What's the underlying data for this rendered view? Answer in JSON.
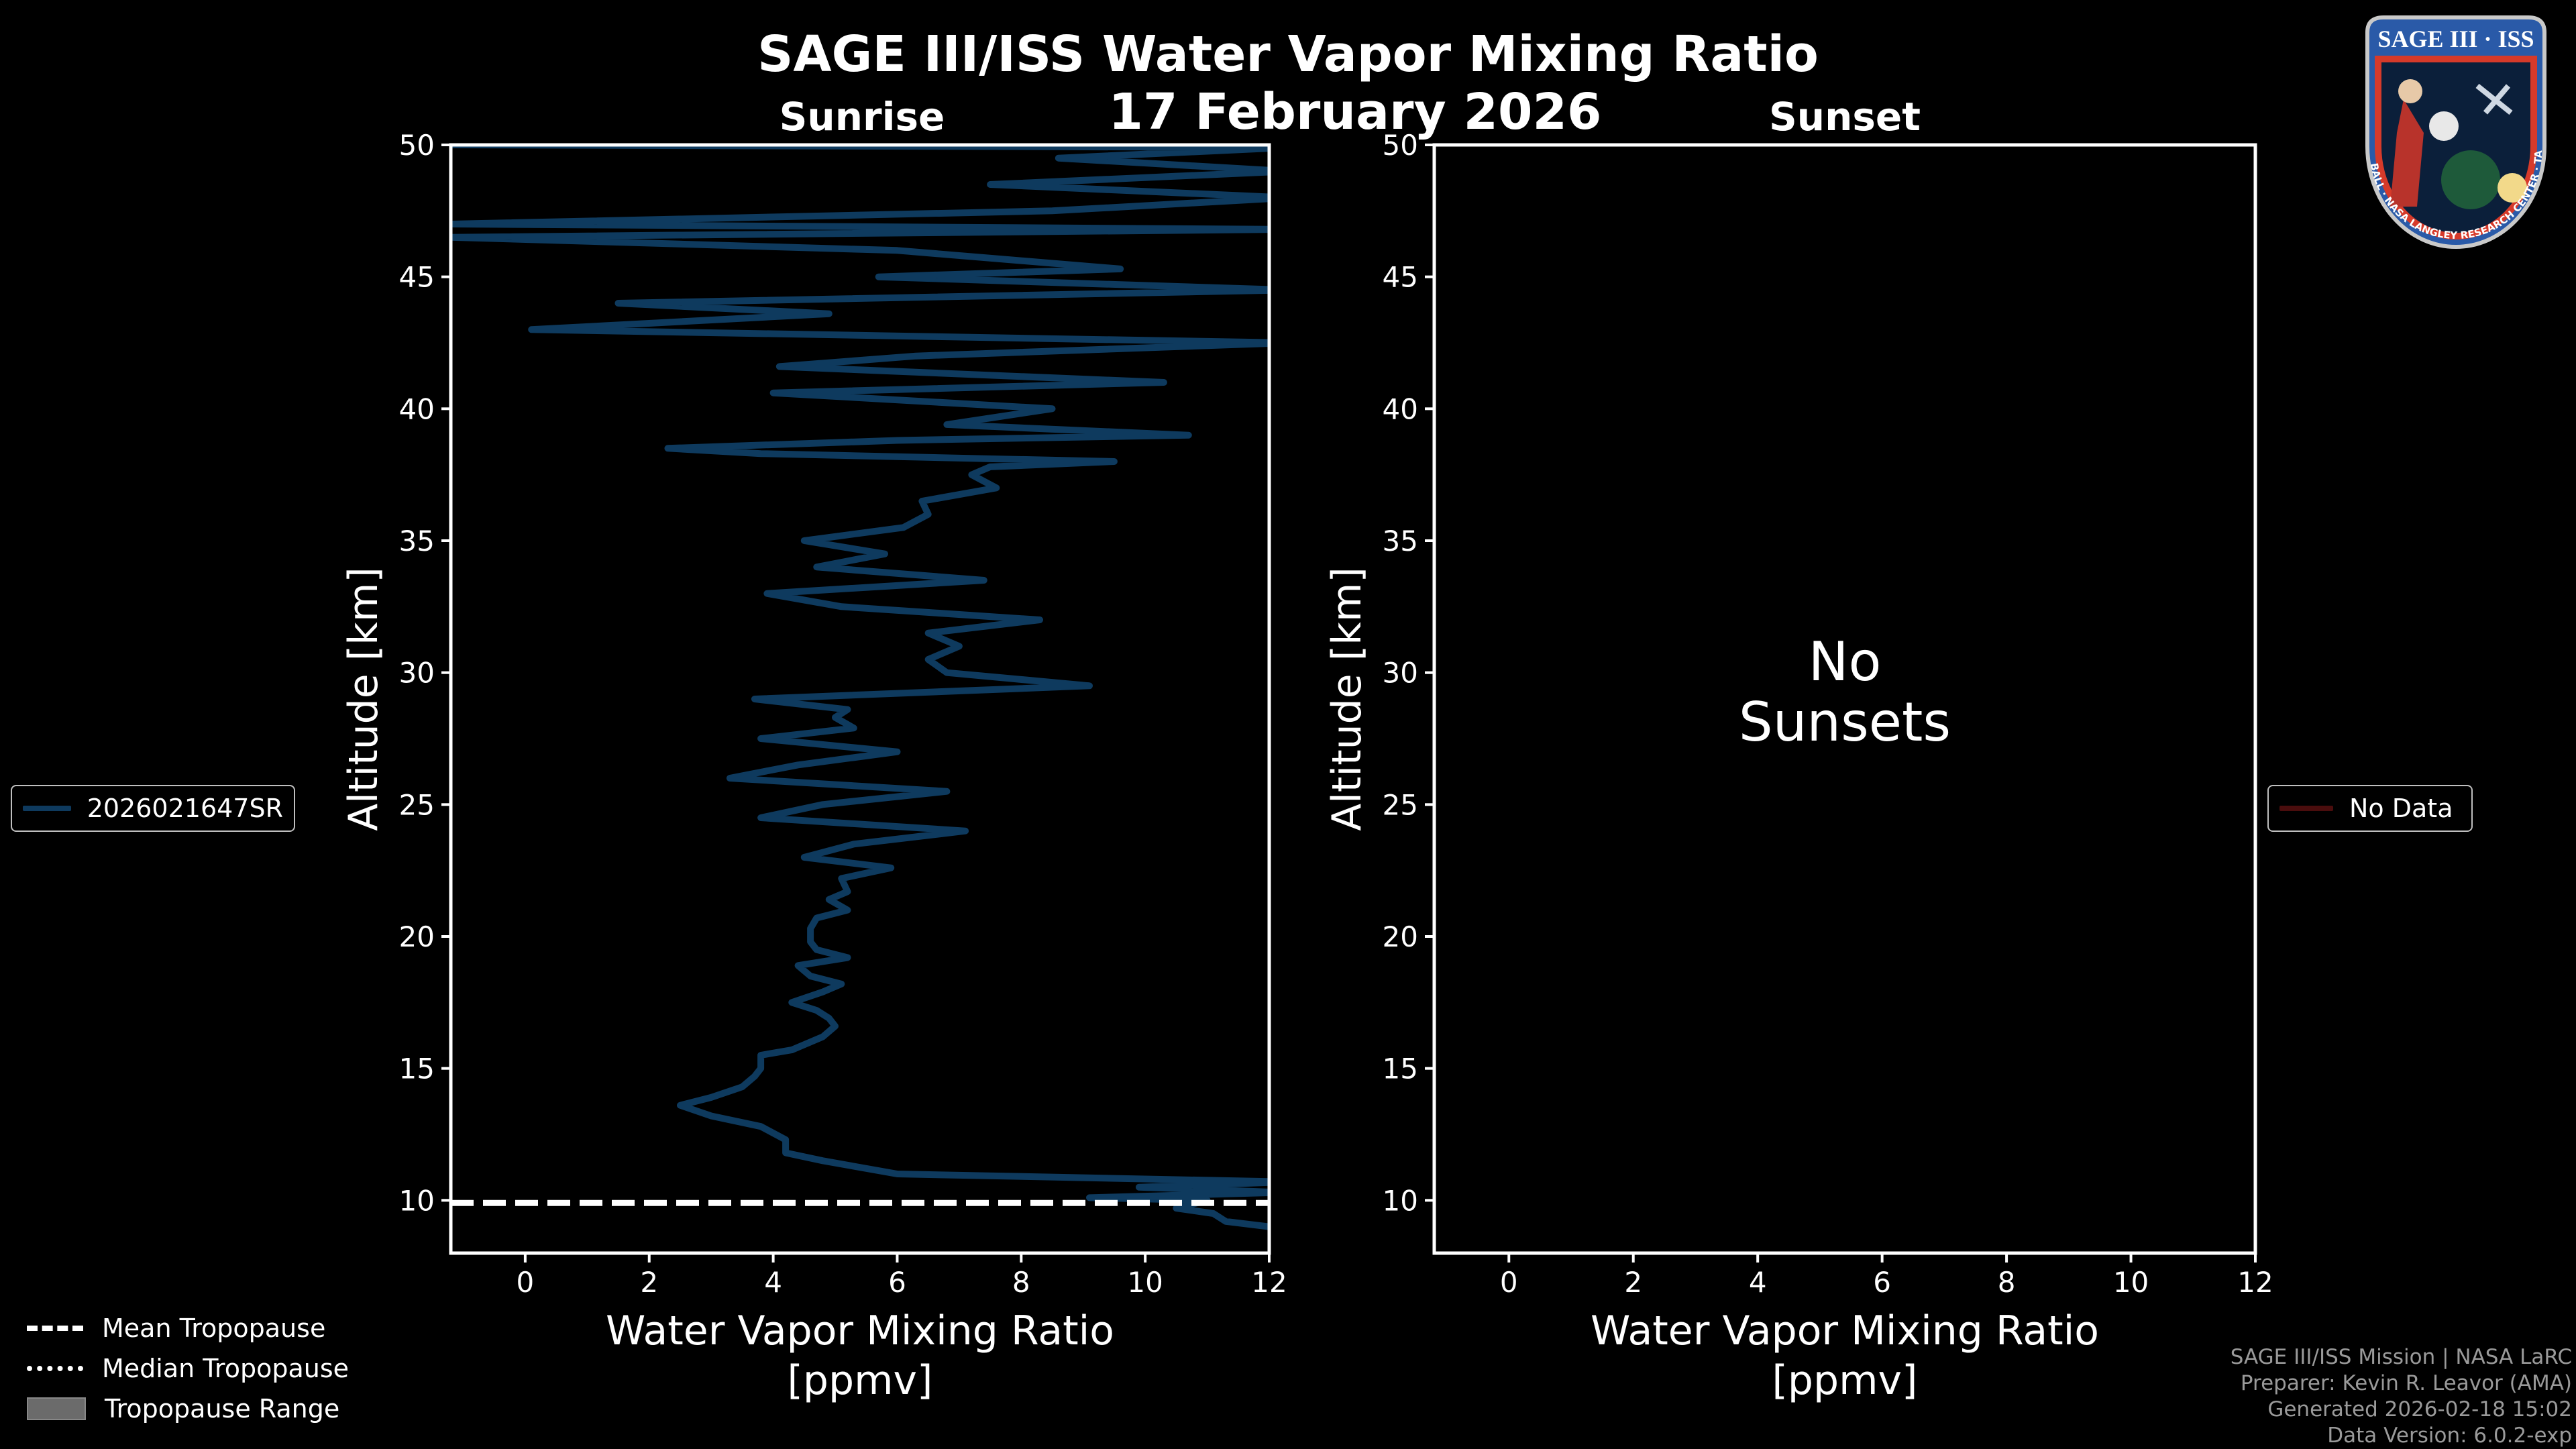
{
  "title": "SAGE III/ISS Water Vapor Mixing Ratio",
  "date": "17 February 2026",
  "panels": {
    "left_title": "Sunrise",
    "right_title": "Sunset",
    "no_data_line1": "No",
    "no_data_line2": "Sunsets"
  },
  "legends": {
    "sunrise_label": "2026021647SR",
    "sunset_label": "No Data",
    "mean_tropopause": "Mean Tropopause",
    "median_tropopause": "Median Tropopause",
    "tropopause_range": "Tropopause Range"
  },
  "colors": {
    "profile": "#0e3a5e",
    "nodata": "#4a0d0d",
    "frame": "#ffffff",
    "range": "#6b6b6b"
  },
  "credits": {
    "line1": "SAGE III/ISS Mission | NASA LaRC",
    "line2": "Preparer: Kevin R. Leavor (AMA)",
    "line3": "Generated 2026-02-18 15:02",
    "line4": "Data Version: 6.0.2-exp"
  },
  "logo": {
    "top_text": "SAGE III · ISS",
    "ring_text": "BALL · NASA LANGLEY RESEARCH CENTER · TAS · ESA"
  },
  "chart_data": [
    {
      "type": "line",
      "panel": "sunrise",
      "title": "Sunrise",
      "xlabel": "Water Vapor Mixing Ratio",
      "xlabel2": "[ppmv]",
      "ylabel": "Altitude [km]",
      "xlim": [
        -1.2,
        12
      ],
      "ylim": [
        8,
        50
      ],
      "xticks": [
        0,
        2,
        4,
        6,
        8,
        10,
        12
      ],
      "yticks": [
        10,
        15,
        20,
        25,
        30,
        35,
        40,
        45,
        50
      ],
      "mean_tropopause_km": 9.9,
      "series": [
        {
          "name": "2026021647SR",
          "x": [
            12.3,
            12.0,
            11.3,
            11.1,
            10.5,
            11.0,
            9.1,
            12.2,
            9.9,
            12.3,
            6.0,
            4.8,
            4.2,
            4.2,
            3.8,
            3.0,
            2.5,
            3.0,
            3.5,
            3.7,
            3.8,
            3.8,
            4.3,
            4.8,
            5.0,
            4.9,
            4.7,
            4.3,
            4.8,
            5.1,
            4.6,
            4.4,
            5.2,
            4.7,
            4.6,
            4.6,
            4.7,
            5.2,
            4.9,
            5.2,
            5.1,
            5.9,
            4.5,
            5.3,
            7.1,
            3.8,
            4.8,
            6.8,
            3.3,
            4.4,
            6.0,
            3.8,
            5.3,
            5.0,
            5.2,
            3.7,
            9.1,
            6.8,
            6.5,
            7.0,
            6.5,
            8.3,
            5.1,
            3.9,
            7.4,
            4.7,
            5.8,
            4.5,
            6.1,
            6.5,
            6.4,
            7.6,
            7.2,
            7.5,
            9.5,
            3.8,
            2.3,
            6.0,
            10.7,
            6.8,
            8.5,
            4.0,
            10.3,
            4.1,
            6.3,
            12.3,
            0.1,
            4.9,
            1.5,
            12.3,
            5.7,
            9.6,
            6.0,
            -1.2,
            12.3,
            -1.2,
            8.5,
            12.3,
            7.5,
            12.3,
            8.6,
            12.3,
            -1.2
          ],
          "y": [
            8.9,
            9.0,
            9.2,
            9.5,
            9.7,
            10.0,
            10.1,
            10.3,
            10.5,
            10.7,
            11.0,
            11.5,
            11.8,
            12.3,
            12.8,
            13.2,
            13.6,
            13.9,
            14.3,
            14.7,
            15.0,
            15.5,
            15.7,
            16.2,
            16.6,
            16.9,
            17.2,
            17.5,
            17.9,
            18.2,
            18.5,
            18.9,
            19.2,
            19.5,
            19.8,
            20.3,
            20.7,
            21.0,
            21.4,
            21.7,
            22.2,
            22.6,
            23.0,
            23.5,
            24.0,
            24.5,
            25.0,
            25.5,
            26.0,
            26.5,
            27.0,
            27.5,
            27.9,
            28.3,
            28.6,
            29.0,
            29.5,
            30.0,
            30.5,
            31.0,
            31.5,
            32.0,
            32.5,
            33.0,
            33.5,
            34.0,
            34.5,
            35.0,
            35.5,
            36.0,
            36.5,
            37.0,
            37.5,
            37.8,
            38.0,
            38.3,
            38.5,
            38.8,
            39.0,
            39.4,
            40.0,
            40.6,
            41.0,
            41.6,
            42.0,
            42.5,
            43.0,
            43.6,
            44.0,
            44.5,
            45.0,
            45.3,
            46.0,
            46.5,
            46.8,
            47.0,
            47.5,
            48.0,
            48.5,
            49.0,
            49.5,
            49.9,
            50.0
          ]
        }
      ]
    },
    {
      "type": "line",
      "panel": "sunset",
      "title": "Sunset",
      "xlabel": "Water Vapor Mixing Ratio",
      "xlabel2": "[ppmv]",
      "ylabel": "Altitude [km]",
      "xlim": [
        -1.2,
        12
      ],
      "ylim": [
        8,
        50
      ],
      "xticks": [
        0,
        2,
        4,
        6,
        8,
        10,
        12
      ],
      "yticks": [
        10,
        15,
        20,
        25,
        30,
        35,
        40,
        45,
        50
      ],
      "series": []
    }
  ]
}
